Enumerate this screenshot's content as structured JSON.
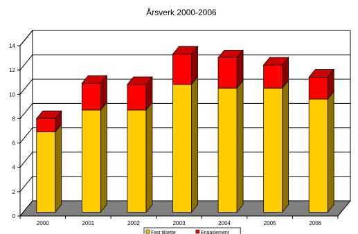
{
  "chart_data": {
    "type": "bar",
    "stacked": true,
    "three_d": true,
    "title": "Årsverk 2000-2006",
    "xlabel": "",
    "ylabel": "",
    "categories": [
      "2000",
      "2001",
      "2002",
      "2003",
      "2004",
      "2005",
      "2006"
    ],
    "series": [
      {
        "name": "Fast tilsette",
        "color": "#ffcc00",
        "values": [
          6.6,
          8.4,
          8.4,
          10.5,
          10.2,
          10.2,
          9.3
        ]
      },
      {
        "name": "Engasjement",
        "color": "#ff0000",
        "values": [
          1.1,
          2.2,
          2.1,
          2.5,
          2.5,
          1.9,
          1.8
        ]
      }
    ],
    "ylim": [
      0,
      14
    ],
    "yticks": [
      "0",
      "2",
      "4",
      "6",
      "8",
      "10",
      "12",
      "14"
    ],
    "grid": true,
    "legend_position": "bottom"
  }
}
